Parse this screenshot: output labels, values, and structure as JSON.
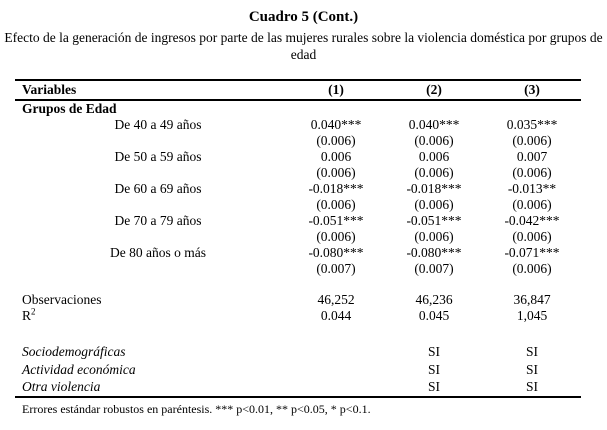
{
  "page": {
    "title": "Cuadro 5 (Cont.)",
    "subtitle": "Efecto de la generación de ingresos por parte de las mujeres rurales sobre la violencia doméstica por grupos de edad",
    "footnote": "Errores estándar robustos en paréntesis. *** p<0.01, ** p<0.05, * p<0.1."
  },
  "table": {
    "header": {
      "variables": "Variables",
      "col1": "(1)",
      "col2": "(2)",
      "col3": "(3)"
    },
    "section_header": "Grupos de Edad",
    "age_rows": [
      {
        "label": "De 40 a 49 años",
        "coef": [
          "0.040***",
          "0.040***",
          "0.035***"
        ],
        "se": [
          "(0.006)",
          "(0.006)",
          "(0.006)"
        ]
      },
      {
        "label": "De 50 a 59 años",
        "coef": [
          "0.006",
          "0.006",
          "0.007"
        ],
        "se": [
          "(0.006)",
          "(0.006)",
          "(0.006)"
        ]
      },
      {
        "label": "De 60 a 69 años",
        "coef": [
          "-0.018***",
          "-0.018***",
          "-0.013**"
        ],
        "se": [
          "(0.006)",
          "(0.006)",
          "(0.006)"
        ]
      },
      {
        "label": "De 70 a 79 años",
        "coef": [
          "-0.051***",
          "-0.051***",
          "-0.042***"
        ],
        "se": [
          "(0.006)",
          "(0.006)",
          "(0.006)"
        ]
      },
      {
        "label": "De 80 años o más",
        "coef": [
          "-0.080***",
          "-0.080***",
          "-0.071***"
        ],
        "se": [
          "(0.007)",
          "(0.007)",
          "(0.006)"
        ]
      }
    ],
    "stats": {
      "observations": {
        "label": "Observaciones",
        "values": [
          "46,252",
          "46,236",
          "36,847"
        ]
      },
      "r_squared": {
        "label_base": "R",
        "label_sup": "2",
        "values": [
          "0.044",
          "0.045",
          "1,045"
        ]
      }
    },
    "controls": [
      {
        "label": "Sociodemográficas",
        "values": [
          "",
          "SI",
          "SI"
        ]
      },
      {
        "label": "Actividad económica",
        "values": [
          "",
          "SI",
          "SI"
        ]
      },
      {
        "label": "Otra violencia",
        "values": [
          "",
          "SI",
          "SI"
        ]
      }
    ]
  }
}
